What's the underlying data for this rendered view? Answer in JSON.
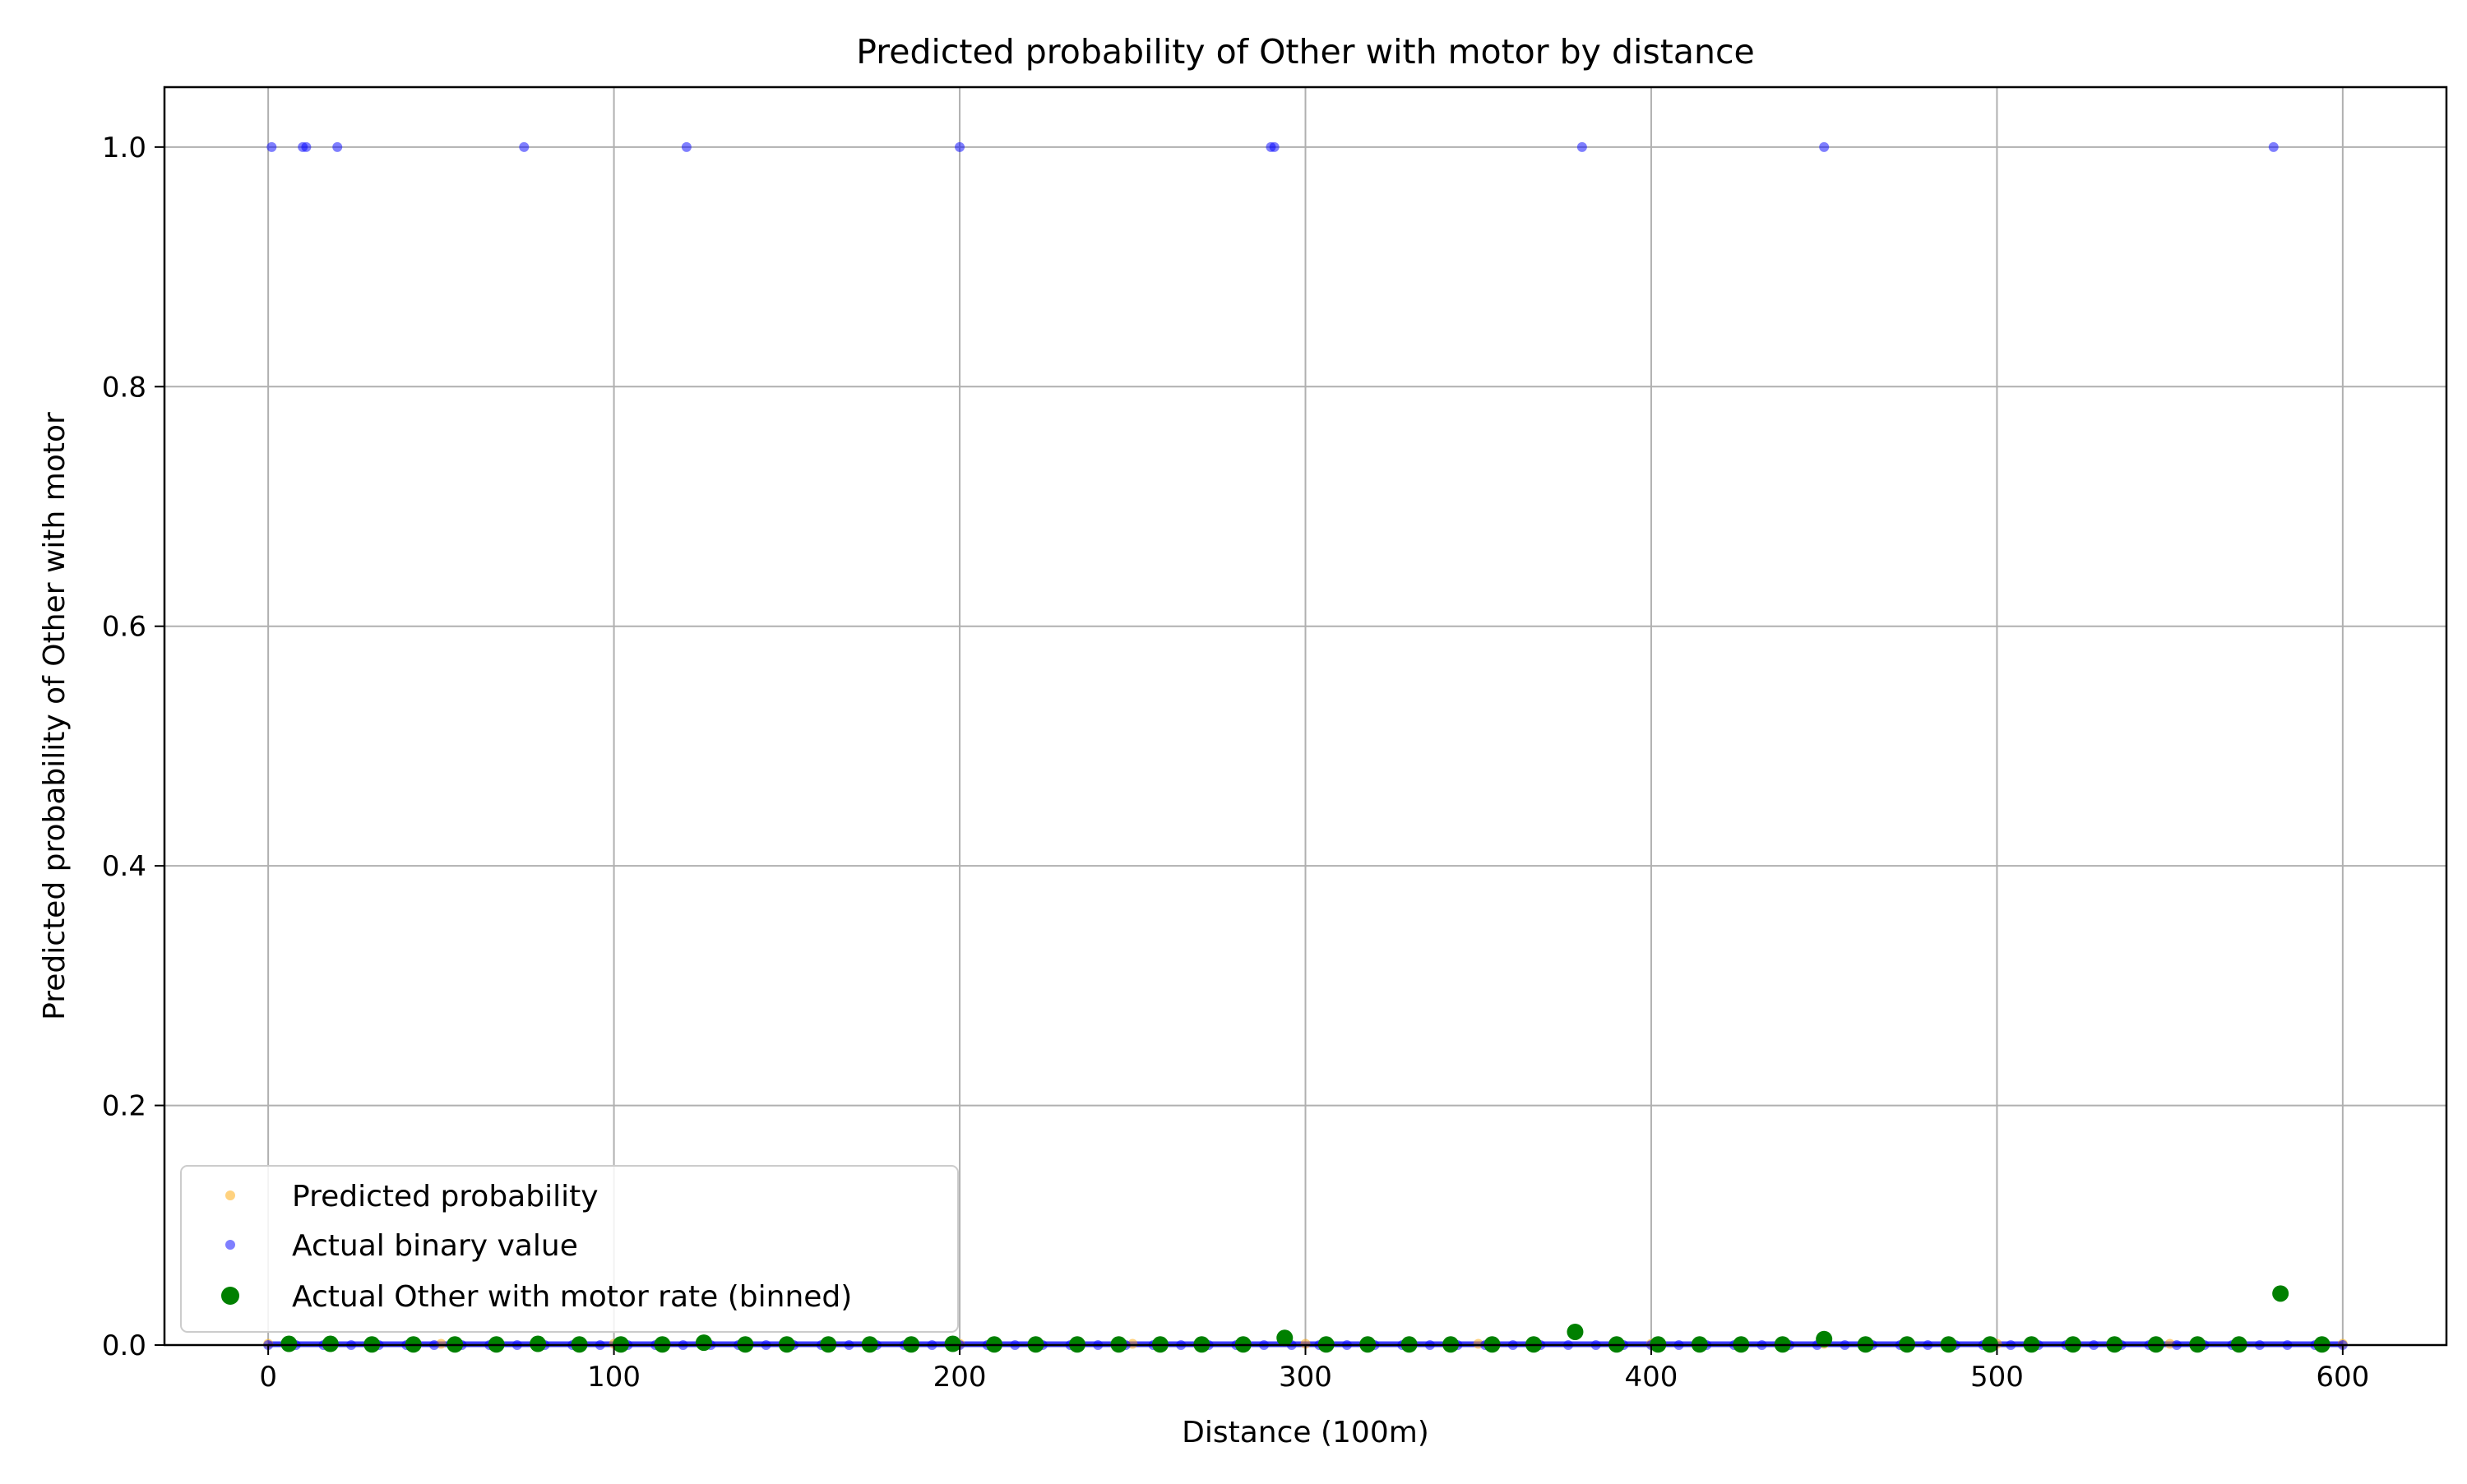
{
  "chart_data": {
    "type": "scatter",
    "title": "Predicted probability of Other with motor by distance",
    "xlabel": "Distance (100m)",
    "ylabel": "Predicted probability of Other with motor",
    "xlim": [
      -30,
      630
    ],
    "ylim": [
      0.0,
      1.05
    ],
    "x_ticks": [
      0,
      100,
      200,
      300,
      400,
      500,
      600
    ],
    "x_tick_labels": [
      "0",
      "100",
      "200",
      "300",
      "400",
      "500",
      "600"
    ],
    "y_ticks": [
      0.0,
      0.2,
      0.4,
      0.6,
      0.8,
      1.0
    ],
    "y_tick_labels": [
      "0.0",
      "0.2",
      "0.4",
      "0.6",
      "0.8",
      "1.0"
    ],
    "grid": true,
    "legend_position": "lower-left",
    "series": [
      {
        "name": "Predicted probability",
        "color": "#ffa500",
        "marker": "small-circle-translucent",
        "x": [
          0,
          50,
          100,
          150,
          200,
          250,
          300,
          350,
          400,
          450,
          500,
          550,
          600
        ],
        "y": [
          0.001,
          0.001,
          0.001,
          0.001,
          0.001,
          0.001,
          0.001,
          0.001,
          0.001,
          0.001,
          0.001,
          0.001,
          0.001
        ]
      },
      {
        "name": "Actual binary value",
        "color": "#0000ff",
        "marker": "small-circle-translucent",
        "x": [
          1,
          10,
          11,
          20,
          74,
          121,
          200,
          290,
          291,
          380,
          450,
          580,
          0,
          8,
          16,
          24,
          32,
          40,
          48,
          56,
          64,
          72,
          80,
          88,
          96,
          104,
          112,
          120,
          128,
          136,
          144,
          152,
          160,
          168,
          176,
          184,
          192,
          200,
          208,
          216,
          224,
          232,
          240,
          248,
          256,
          264,
          272,
          280,
          288,
          296,
          304,
          312,
          320,
          328,
          336,
          344,
          352,
          360,
          368,
          376,
          384,
          392,
          400,
          408,
          416,
          424,
          432,
          440,
          448,
          456,
          464,
          472,
          480,
          488,
          496,
          504,
          512,
          520,
          528,
          536,
          544,
          552,
          560,
          568,
          576,
          584,
          592,
          600
        ],
        "y": [
          1,
          1,
          1,
          1,
          1,
          1,
          1,
          1,
          1,
          1,
          1,
          1,
          0,
          0,
          0,
          0,
          0,
          0,
          0,
          0,
          0,
          0,
          0,
          0,
          0,
          0,
          0,
          0,
          0,
          0,
          0,
          0,
          0,
          0,
          0,
          0,
          0,
          0,
          0,
          0,
          0,
          0,
          0,
          0,
          0,
          0,
          0,
          0,
          0,
          0,
          0,
          0,
          0,
          0,
          0,
          0,
          0,
          0,
          0,
          0,
          0,
          0,
          0,
          0,
          0,
          0,
          0,
          0,
          0,
          0,
          0,
          0,
          0,
          0,
          0,
          0,
          0,
          0,
          0,
          0,
          0,
          0,
          0,
          0,
          0,
          0,
          0,
          0
        ]
      },
      {
        "name": "Actual Other with motor rate (binned)",
        "color": "#008000",
        "marker": "circle",
        "x": [
          6,
          18,
          30,
          42,
          54,
          66,
          78,
          90,
          102,
          114,
          126,
          138,
          150,
          162,
          174,
          186,
          198,
          210,
          222,
          234,
          246,
          258,
          270,
          282,
          294,
          306,
          318,
          330,
          342,
          354,
          366,
          378,
          390,
          402,
          414,
          426,
          438,
          450,
          462,
          474,
          486,
          498,
          510,
          522,
          534,
          546,
          558,
          570,
          582,
          594
        ],
        "y": [
          0.001,
          0.001,
          0.0005,
          0.0005,
          0.0005,
          0.0005,
          0.001,
          0.0005,
          0.0005,
          0.0005,
          0.002,
          0.0005,
          0.0005,
          0.0005,
          0.0005,
          0.0005,
          0.001,
          0.0005,
          0.0005,
          0.0005,
          0.0005,
          0.0005,
          0.0005,
          0.0005,
          0.006,
          0.0005,
          0.0005,
          0.0005,
          0.0005,
          0.0005,
          0.0005,
          0.011,
          0.0005,
          0.0005,
          0.0005,
          0.0005,
          0.0005,
          0.005,
          0.0005,
          0.0005,
          0.0005,
          0.0005,
          0.0005,
          0.0005,
          0.0005,
          0.0005,
          0.0005,
          0.0005,
          0.043,
          0.0005
        ]
      }
    ]
  }
}
